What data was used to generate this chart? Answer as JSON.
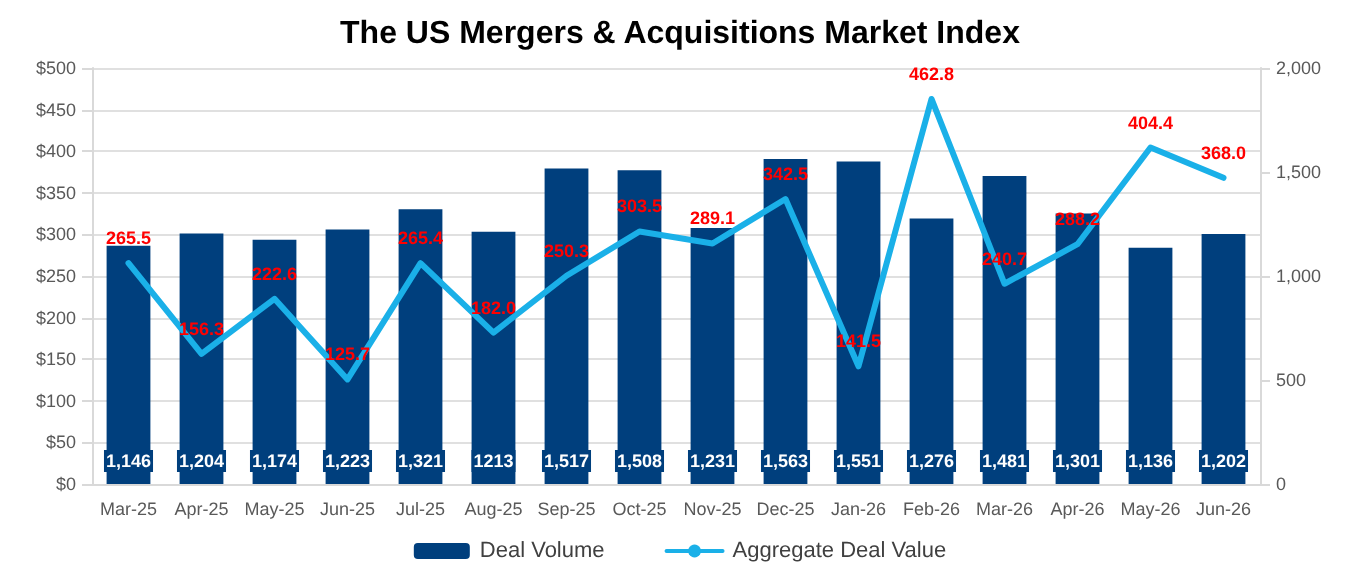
{
  "chart_data": {
    "type": "bar",
    "title": "The US Mergers & Acquisitions Market Index",
    "categories": [
      "Mar-25",
      "Apr-25",
      "May-25",
      "Jun-25",
      "Jul-25",
      "Aug-25",
      "Sep-25",
      "Oct-25",
      "Nov-25",
      "Dec-25",
      "Jan-26",
      "Feb-26",
      "Mar-26",
      "Apr-26",
      "May-26",
      "Jun-26"
    ],
    "series": [
      {
        "name": "Deal Volume",
        "axis": "y2",
        "color": "#003f7d",
        "values": [
          1146,
          1204,
          1174,
          1223,
          1321,
          1213,
          1517,
          1508,
          1231,
          1563,
          1551,
          1276,
          1481,
          1301,
          1136,
          1202
        ],
        "value_labels": [
          "1,146",
          "1,204",
          "1,174",
          "1,223",
          "1,321",
          "1213",
          "1,517",
          "1,508",
          "1,231",
          "1,563",
          "1,551",
          "1,276",
          "1,481",
          "1,301",
          "1,136",
          "1,202"
        ]
      },
      {
        "name": "Aggregate Deal Value",
        "type": "line",
        "color": "#1ab0e8",
        "values": [
          265.5,
          156.3,
          222.6,
          125.7,
          265.4,
          182.0,
          250.3,
          303.5,
          289.1,
          342.5,
          141.5,
          462.8,
          240.7,
          288.2,
          404.4,
          368.0
        ],
        "value_labels": [
          "265.5",
          "156.3",
          "222.6",
          "125.7",
          "265.4",
          "182.0",
          "250.3",
          "303.5",
          "289.1",
          "342.5",
          "141.5",
          "462.8",
          "240.7",
          "288.2",
          "404.4",
          "368.0"
        ]
      }
    ],
    "ylim": [
      0,
      500
    ],
    "yticks": [
      {
        "value": 0,
        "label": "$0"
      },
      {
        "value": 50,
        "label": "$50"
      },
      {
        "value": 100,
        "label": "$100"
      },
      {
        "value": 150,
        "label": "$150"
      },
      {
        "value": 200,
        "label": "$200"
      },
      {
        "value": 250,
        "label": "$250"
      },
      {
        "value": 300,
        "label": "$300"
      },
      {
        "value": 350,
        "label": "$350"
      },
      {
        "value": 400,
        "label": "$400"
      },
      {
        "value": 450,
        "label": "$450"
      },
      {
        "value": 500,
        "label": "$500"
      }
    ],
    "y2lim": [
      0,
      2000
    ],
    "y2ticks": [
      {
        "value": 0,
        "label": "0"
      },
      {
        "value": 500,
        "label": "500"
      },
      {
        "value": 1000,
        "label": "1,000"
      },
      {
        "value": 1500,
        "label": "1,500"
      },
      {
        "value": 2000,
        "label": "2,000"
      }
    ],
    "grid": "y",
    "legend": "bottom",
    "marker": "none",
    "line_style": "solid"
  }
}
